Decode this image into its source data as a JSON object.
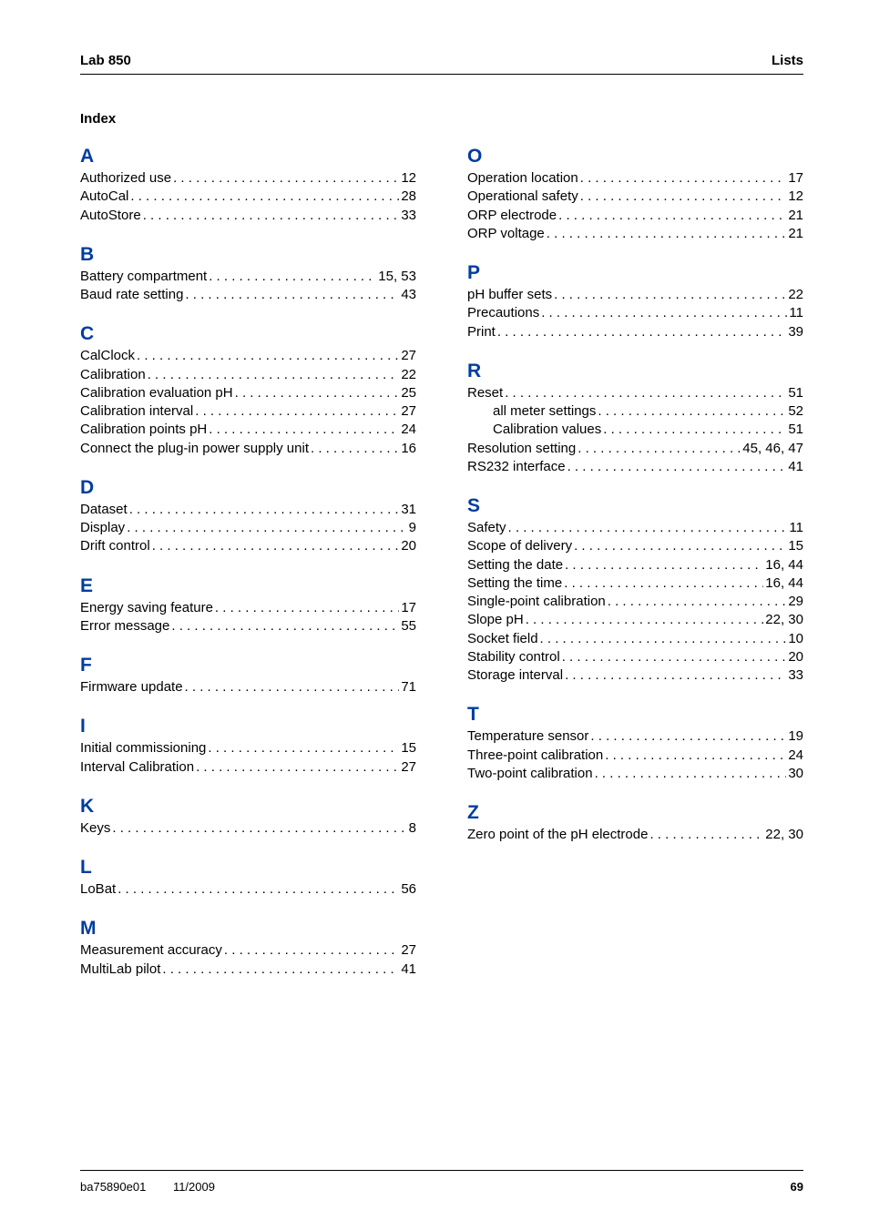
{
  "header": {
    "left": "Lab 850",
    "right": "Lists"
  },
  "index_title": "Index",
  "letter_color": "#003d9e",
  "footer": {
    "doc": "ba75890e01",
    "date": "11/2009",
    "page": "69"
  },
  "left_sections": [
    {
      "letter": "A",
      "entries": [
        {
          "label": "Authorized use",
          "pages": "12"
        },
        {
          "label": "AutoCal",
          "pages": "28"
        },
        {
          "label": "AutoStore",
          "pages": "33"
        }
      ]
    },
    {
      "letter": "B",
      "entries": [
        {
          "label": "Battery compartment",
          "pages": "15, 53"
        },
        {
          "label": "Baud rate setting",
          "pages": "43"
        }
      ]
    },
    {
      "letter": "C",
      "entries": [
        {
          "label": "CalClock",
          "pages": "27"
        },
        {
          "label": "Calibration",
          "pages": "22"
        },
        {
          "label": "Calibration evaluation pH",
          "pages": "25"
        },
        {
          "label": "Calibration interval",
          "pages": "27"
        },
        {
          "label": "Calibration points pH",
          "pages": "24"
        },
        {
          "label": "Connect the plug-in power supply unit",
          "pages": "16"
        }
      ]
    },
    {
      "letter": "D",
      "entries": [
        {
          "label": "Dataset",
          "pages": "31"
        },
        {
          "label": "Display",
          "pages": "9"
        },
        {
          "label": "Drift control",
          "pages": "20"
        }
      ]
    },
    {
      "letter": "E",
      "entries": [
        {
          "label": "Energy saving feature",
          "pages": "17"
        },
        {
          "label": "Error message",
          "pages": "55"
        }
      ]
    },
    {
      "letter": "F",
      "entries": [
        {
          "label": "Firmware update",
          "pages": "71"
        }
      ]
    },
    {
      "letter": "I",
      "entries": [
        {
          "label": "Initial commissioning",
          "pages": "15"
        },
        {
          "label": "Interval Calibration",
          "pages": "27"
        }
      ]
    },
    {
      "letter": "K",
      "entries": [
        {
          "label": "Keys",
          "pages": "8"
        }
      ]
    },
    {
      "letter": "L",
      "entries": [
        {
          "label": "LoBat",
          "pages": "56"
        }
      ]
    },
    {
      "letter": "M",
      "entries": [
        {
          "label": "Measurement accuracy",
          "pages": "27"
        },
        {
          "label": "MultiLab pilot",
          "pages": "41"
        }
      ]
    }
  ],
  "right_sections": [
    {
      "letter": "O",
      "entries": [
        {
          "label": "Operation location",
          "pages": "17"
        },
        {
          "label": "Operational safety",
          "pages": "12"
        },
        {
          "label": "ORP electrode",
          "pages": "21"
        },
        {
          "label": "ORP voltage",
          "pages": "21"
        }
      ]
    },
    {
      "letter": "P",
      "entries": [
        {
          "label": "pH buffer sets",
          "pages": "22"
        },
        {
          "label": "Precautions",
          "pages": "11"
        },
        {
          "label": "Print",
          "pages": "39"
        }
      ]
    },
    {
      "letter": "R",
      "entries": [
        {
          "label": "Reset",
          "pages": "51"
        },
        {
          "label": "all meter settings",
          "pages": "52",
          "sub": true
        },
        {
          "label": "Calibration values",
          "pages": "51",
          "sub": true
        },
        {
          "label": "Resolution setting",
          "pages": "45, 46, 47"
        },
        {
          "label": "RS232 interface",
          "pages": "41"
        }
      ]
    },
    {
      "letter": "S",
      "entries": [
        {
          "label": "Safety",
          "pages": "11"
        },
        {
          "label": "Scope of delivery",
          "pages": "15"
        },
        {
          "label": "Setting the date",
          "pages": "16, 44"
        },
        {
          "label": "Setting the time",
          "pages": "16, 44"
        },
        {
          "label": "Single-point calibration",
          "pages": "29"
        },
        {
          "label": "Slope pH",
          "pages": "22, 30"
        },
        {
          "label": "Socket field",
          "pages": "10"
        },
        {
          "label": "Stability control",
          "pages": "20"
        },
        {
          "label": "Storage interval",
          "pages": "33"
        }
      ]
    },
    {
      "letter": "T",
      "entries": [
        {
          "label": "Temperature sensor",
          "pages": "19"
        },
        {
          "label": "Three-point calibration",
          "pages": "24"
        },
        {
          "label": "Two-point calibration",
          "pages": "30"
        }
      ]
    },
    {
      "letter": "Z",
      "entries": [
        {
          "label": "Zero point of the pH electrode",
          "pages": "22, 30"
        }
      ]
    }
  ]
}
